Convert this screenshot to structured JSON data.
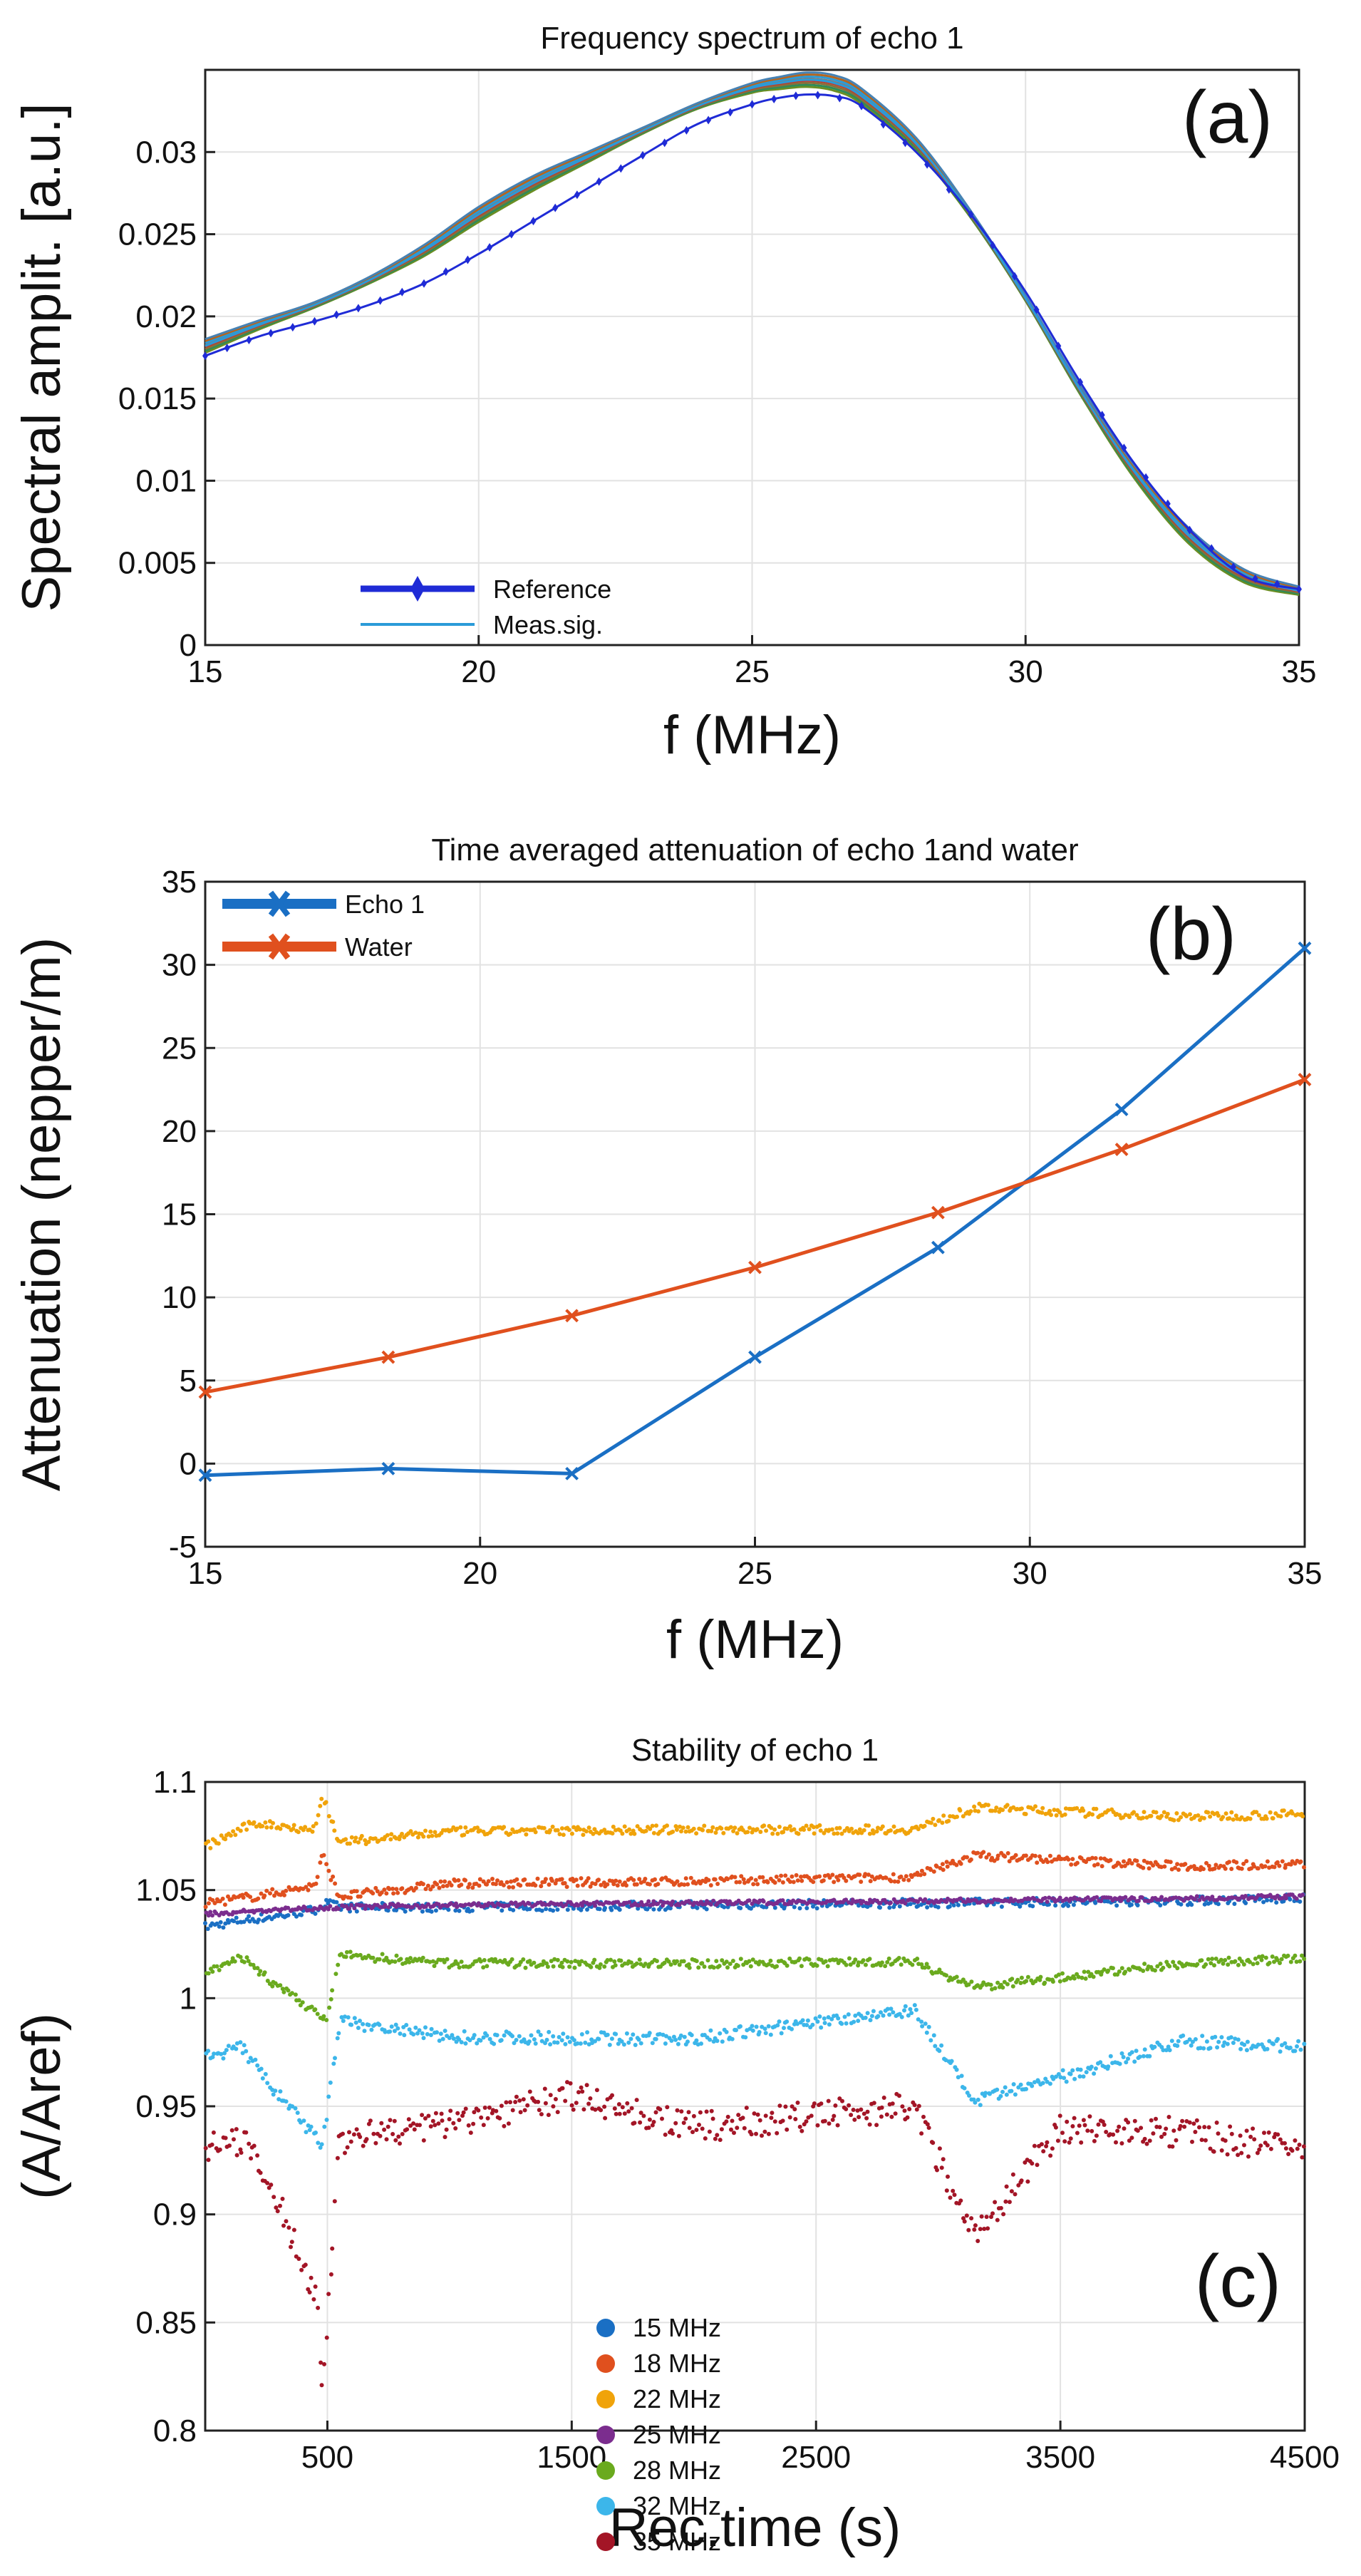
{
  "chart_data": [
    {
      "type": "line",
      "panel_label": "(a)",
      "title": "Frequency spectrum of echo 1",
      "xlabel": "f (MHz)",
      "ylabel": "Spectral amplit. [a.u.]",
      "xlim": [
        15,
        35
      ],
      "ylim": [
        0,
        0.035
      ],
      "x_ticks": [
        "15",
        "20",
        "25",
        "30",
        "35"
      ],
      "y_ticks": [
        "0",
        "0.005",
        "0.01",
        "0.015",
        "0.02",
        "0.025",
        "0.03"
      ],
      "grid": true,
      "legend_position": "bottom-left",
      "legend": [
        "Reference",
        "Meas.sig."
      ],
      "series": [
        {
          "name": "Reference",
          "color": "#1f2bd6",
          "marker": "diamond",
          "x": [
            15,
            16,
            17,
            18,
            19,
            20,
            21,
            22,
            23,
            24,
            25,
            25.5,
            26,
            26.5,
            27,
            28,
            29,
            30,
            31,
            32,
            33,
            34,
            35
          ],
          "y": [
            0.0176,
            0.0188,
            0.0197,
            0.0207,
            0.022,
            0.0238,
            0.0258,
            0.0278,
            0.0298,
            0.0317,
            0.0329,
            0.0333,
            0.0335,
            0.0334,
            0.0328,
            0.03,
            0.0262,
            0.0215,
            0.016,
            0.011,
            0.007,
            0.0042,
            0.0034
          ]
        },
        {
          "name": "Meas.sig.",
          "color": "#2a9bd8",
          "x": [
            15,
            16,
            17,
            18,
            19,
            20,
            21,
            22,
            23,
            24,
            25,
            25.5,
            26,
            26.5,
            27,
            28,
            29,
            30,
            31,
            32,
            33,
            34,
            35
          ],
          "y": [
            0.0182,
            0.0195,
            0.0207,
            0.0222,
            0.024,
            0.0262,
            0.0281,
            0.0297,
            0.0313,
            0.0328,
            0.0339,
            0.0342,
            0.0344,
            0.0342,
            0.0334,
            0.0305,
            0.0262,
            0.0211,
            0.0155,
            0.0105,
            0.0066,
            0.0042,
            0.0033
          ]
        }
      ]
    },
    {
      "type": "line",
      "panel_label": "(b)",
      "title": "Time averaged attenuation of echo 1and water",
      "xlabel": "f (MHz)",
      "ylabel": "Attenuation (nepper/m)",
      "xlim": [
        15,
        35
      ],
      "ylim": [
        -5,
        35
      ],
      "x_ticks": [
        "15",
        "20",
        "25",
        "30",
        "35"
      ],
      "y_ticks": [
        "-5",
        "0",
        "5",
        "10",
        "15",
        "20",
        "25",
        "30",
        "35"
      ],
      "grid": true,
      "legend_position": "top-left",
      "legend": [
        "Echo 1",
        "Water"
      ],
      "series": [
        {
          "name": "Echo 1",
          "color": "#1a6fc4",
          "x": [
            15,
            18.33,
            21.67,
            25,
            28.33,
            31.67,
            35
          ],
          "y": [
            -0.7,
            -0.3,
            -0.6,
            6.4,
            13.0,
            21.3,
            31.0
          ]
        },
        {
          "name": "Water",
          "color": "#e0501e",
          "x": [
            15,
            18.33,
            21.67,
            25,
            28.33,
            31.67,
            35
          ],
          "y": [
            4.3,
            6.4,
            8.9,
            11.8,
            15.1,
            18.9,
            23.1
          ]
        }
      ]
    },
    {
      "type": "scatter",
      "panel_label": "(c)",
      "title": "Stability of echo 1",
      "xlabel": "Rec.time (s)",
      "ylabel": "(A/Aref)",
      "xlim": [
        0,
        4500
      ],
      "ylim": [
        0.8,
        1.1
      ],
      "x_ticks": [
        "500",
        "1500",
        "2500",
        "3500",
        "4500"
      ],
      "y_ticks": [
        "0.8",
        "0.85",
        "0.9",
        "0.95",
        "1",
        "1.05",
        "1.1"
      ],
      "grid": true,
      "legend_position": "lower-middle",
      "legend": [
        "15 MHz",
        "18 MHz",
        "22 MHz",
        "25 MHz",
        "28 MHz",
        "32 MHz",
        "35 MHz"
      ],
      "series": [
        {
          "name": "15 MHz",
          "color": "#1a6fc4",
          "baseline": 1.043,
          "noise": 0.002,
          "x": [
            0,
            150,
            300,
            450,
            500,
            550,
            1000,
            2000,
            3000,
            4000,
            4450
          ],
          "y": [
            1.033,
            1.036,
            1.038,
            1.041,
            1.044,
            1.042,
            1.042,
            1.043,
            1.044,
            1.045,
            1.046
          ]
        },
        {
          "name": "18 MHz",
          "color": "#e0501e",
          "baseline": 1.055,
          "noise": 0.002,
          "x": [
            0,
            200,
            450,
            480,
            550,
            1000,
            2000,
            2900,
            3150,
            4000,
            4450
          ],
          "y": [
            1.044,
            1.047,
            1.052,
            1.066,
            1.047,
            1.053,
            1.054,
            1.056,
            1.066,
            1.061,
            1.062
          ]
        },
        {
          "name": "22 MHz",
          "color": "#f0a30a",
          "baseline": 1.078,
          "noise": 0.002,
          "x": [
            0,
            200,
            450,
            480,
            550,
            1000,
            2000,
            2900,
            3150,
            4000,
            4450
          ],
          "y": [
            1.07,
            1.081,
            1.078,
            1.094,
            1.072,
            1.077,
            1.078,
            1.078,
            1.088,
            1.084,
            1.085
          ]
        },
        {
          "name": "25 MHz",
          "color": "#7b2d8e",
          "baseline": 1.044,
          "noise": 0.001,
          "x": [
            0,
            500,
            1000,
            2000,
            3000,
            4000,
            4450
          ],
          "y": [
            1.039,
            1.042,
            1.043,
            1.044,
            1.045,
            1.046,
            1.047
          ]
        },
        {
          "name": "28 MHz",
          "color": "#6aaa1e",
          "baseline": 1.017,
          "noise": 0.002,
          "x": [
            0,
            150,
            300,
            500,
            550,
            1000,
            2000,
            2900,
            3150,
            4000,
            4450
          ],
          "y": [
            1.011,
            1.019,
            1.005,
            0.99,
            1.02,
            1.016,
            1.016,
            1.017,
            1.005,
            1.016,
            1.018
          ]
        },
        {
          "name": "32 MHz",
          "color": "#3cb6ea",
          "baseline": 0.981,
          "noise": 0.003,
          "x": [
            0,
            150,
            300,
            480,
            550,
            1000,
            2000,
            2900,
            3150,
            4000,
            4450
          ],
          "y": [
            0.973,
            0.977,
            0.955,
            0.932,
            0.989,
            0.982,
            0.981,
            0.995,
            0.952,
            0.98,
            0.978
          ]
        },
        {
          "name": "35 MHz",
          "color": "#a31526",
          "baseline": 0.942,
          "noise": 0.007,
          "x": [
            0,
            150,
            300,
            460,
            480,
            550,
            1000,
            1500,
            2000,
            2900,
            3150,
            3500,
            4000,
            4450
          ],
          "y": [
            0.93,
            0.935,
            0.905,
            0.86,
            0.818,
            0.935,
            0.942,
            0.955,
            0.94,
            0.95,
            0.89,
            0.94,
            0.938,
            0.93
          ]
        }
      ]
    }
  ]
}
